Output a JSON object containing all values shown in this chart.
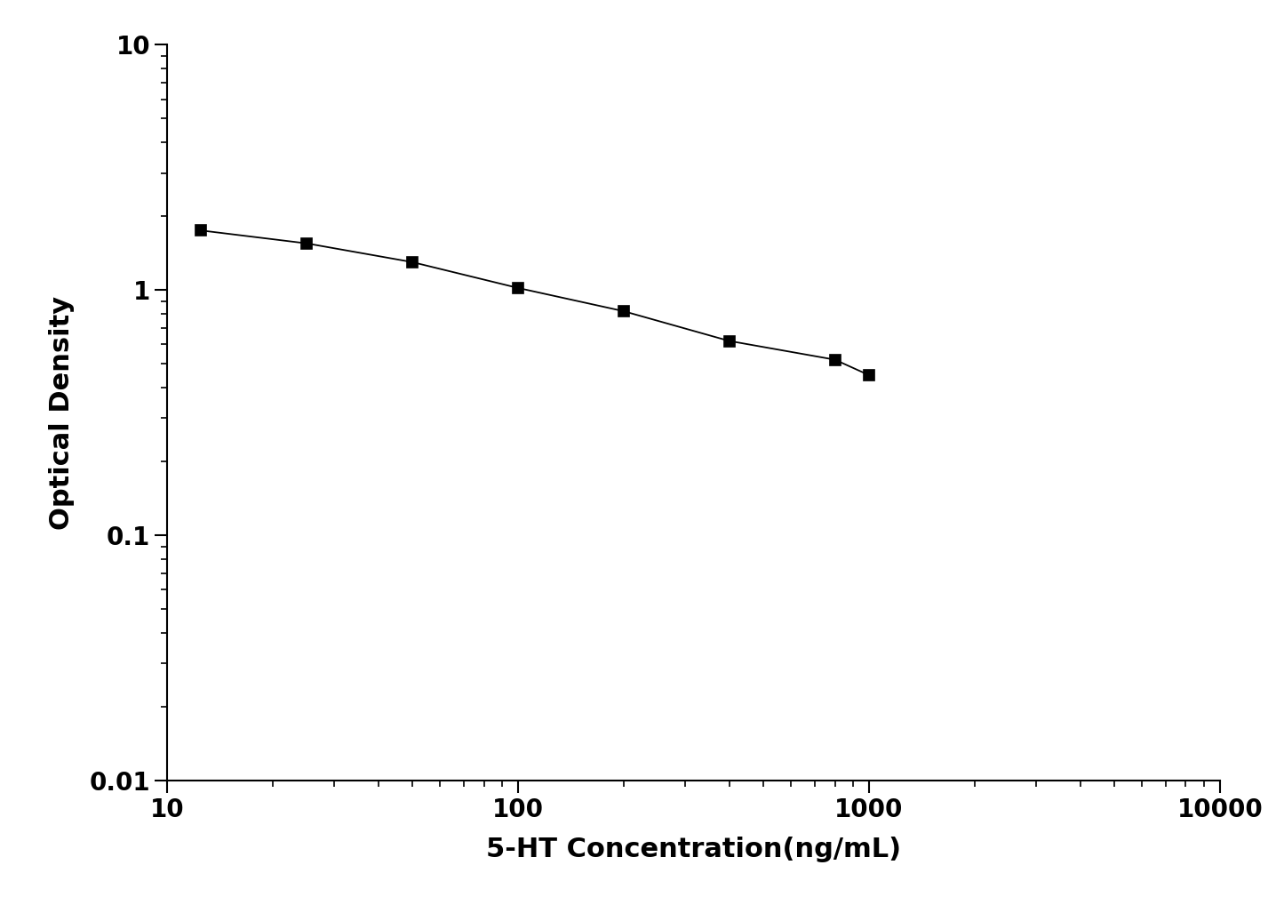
{
  "x": [
    12.5,
    25,
    50,
    100,
    200,
    400,
    800,
    1000
  ],
  "y": [
    1.75,
    1.55,
    1.3,
    1.02,
    0.82,
    0.62,
    0.52,
    0.45
  ],
  "xlabel": "5-HT Concentration(ng/mL)",
  "ylabel": "Optical Density",
  "xlim": [
    10,
    10000
  ],
  "ylim": [
    0.01,
    10
  ],
  "line_color": "#000000",
  "marker": "s",
  "marker_size": 9,
  "marker_color": "#000000",
  "line_width": 1.3,
  "xlabel_fontsize": 22,
  "ylabel_fontsize": 22,
  "tick_fontsize": 20,
  "background_color": "#ffffff"
}
